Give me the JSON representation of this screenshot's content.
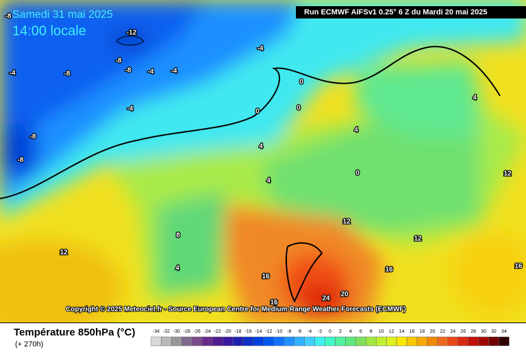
{
  "header": {
    "date": "Samedi 31 mai 2025",
    "time": "14:00 locale",
    "run": "Run ECMWF AIFSv1 0.25° 6 Z du Mardi 20 mai 2025"
  },
  "copyright": "Copyright © 2025 Meteociel.fr - Source European Centre for Medium-Range Weather Forecasts (ECMWF)",
  "footer": {
    "title": "Température 850hPa (°C)",
    "subtitle": "(+ 270h)"
  },
  "legend": {
    "labels": [
      -34,
      -32,
      -30,
      -28,
      -26,
      -24,
      -22,
      -20,
      -18,
      -16,
      -14,
      -12,
      -10,
      -8,
      -6,
      -4,
      -2,
      0,
      2,
      4,
      6,
      8,
      10,
      12,
      14,
      16,
      18,
      20,
      22,
      24,
      26,
      28,
      30,
      32,
      34
    ],
    "colors": [
      "#d8d8d8",
      "#b8b8b8",
      "#989898",
      "#806a90",
      "#7a4a8a",
      "#6a2a8a",
      "#501a90",
      "#3a1aa0",
      "#2020b0",
      "#1030c8",
      "#0040e0",
      "#0058f0",
      "#1070ff",
      "#2090ff",
      "#30b0ff",
      "#40d0ff",
      "#40f0f0",
      "#40f8c8",
      "#50f0a0",
      "#60e880",
      "#80e060",
      "#a0e840",
      "#c0f030",
      "#e0f020",
      "#f8e800",
      "#f8c800",
      "#f8a800",
      "#f08800",
      "#f06820",
      "#e84818",
      "#d82810",
      "#c01008",
      "#a00808",
      "#700000",
      "#300000"
    ]
  },
  "contour_labels": [
    "-8",
    "-12",
    "-8",
    "-8",
    "-8",
    "-4",
    "-4",
    "-4",
    "-4",
    "-4",
    "-8",
    "-8",
    "0",
    "0",
    "0",
    "0",
    "4",
    "4",
    "4",
    "4",
    "4",
    "8",
    "12",
    "12",
    "12",
    "12",
    "16",
    "16",
    "16",
    "16",
    "20",
    "24"
  ]
}
